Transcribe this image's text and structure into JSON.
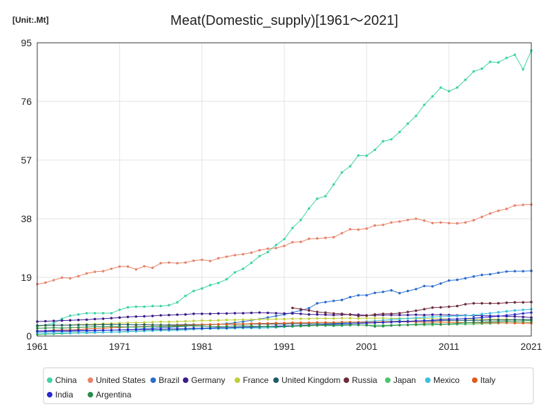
{
  "chart_data": {
    "type": "line",
    "title": "Meat(Domestic_supply)[1961～2021]",
    "unit_label": "[Unit:.Mt]",
    "xlabel": "",
    "ylabel": "",
    "xlim": [
      1961,
      2021
    ],
    "ylim": [
      0,
      95
    ],
    "x_ticks": [
      1961,
      1971,
      1981,
      1991,
      2001,
      2011,
      2021
    ],
    "y_ticks": [
      0,
      19,
      38,
      57,
      76,
      95
    ],
    "grid": true,
    "legend_position": "bottom",
    "series": [
      {
        "name": "China",
        "color": "#3fd3a6",
        "start_year": 1961,
        "values": [
          3.1,
          3.5,
          4.2,
          5.6,
          6.6,
          7.0,
          7.4,
          7.4,
          7.4,
          7.4,
          8.5,
          9.3,
          9.5,
          9.5,
          9.7,
          9.7,
          10.0,
          10.9,
          13.0,
          14.6,
          15.4,
          16.5,
          17.2,
          18.4,
          20.6,
          21.8,
          23.7,
          25.9,
          27.2,
          29.5,
          31.4,
          35.0,
          37.6,
          41.3,
          44.5,
          45.3,
          49.1,
          53.0,
          55.0,
          58.5,
          58.4,
          60.3,
          63.1,
          63.7,
          66.1,
          68.8,
          71.3,
          74.9,
          77.6,
          80.5,
          79.3,
          80.5,
          83.0,
          85.7,
          86.6,
          88.8,
          88.6,
          90.1,
          91.1,
          86.4,
          92.5
        ]
      },
      {
        "name": "United States",
        "color": "#e8846a",
        "start_year": 1961,
        "values": [
          16.8,
          17.3,
          18.1,
          18.9,
          18.7,
          19.4,
          20.3,
          20.8,
          21.0,
          21.8,
          22.5,
          22.5,
          21.6,
          22.6,
          22.1,
          23.6,
          23.8,
          23.6,
          23.8,
          24.4,
          24.7,
          24.3,
          25.2,
          25.7,
          26.2,
          26.5,
          27.0,
          27.8,
          28.3,
          28.5,
          29.2,
          30.4,
          30.5,
          31.5,
          31.6,
          31.8,
          32.0,
          33.3,
          34.6,
          34.5,
          34.8,
          35.8,
          36.0,
          36.8,
          37.1,
          37.6,
          38.0,
          37.4,
          36.6,
          36.8,
          36.6,
          36.5,
          36.8,
          37.5,
          38.6,
          39.7,
          40.6,
          41.2,
          42.3,
          42.5,
          42.6
        ]
      },
      {
        "name": "Brazil",
        "color": "#2a6dcf",
        "start_year": 1961,
        "values": [
          1.4,
          1.4,
          1.5,
          1.5,
          1.5,
          1.6,
          1.6,
          1.7,
          1.8,
          1.9,
          2.0,
          2.1,
          2.2,
          2.4,
          2.5,
          2.7,
          2.8,
          3.0,
          3.2,
          3.5,
          3.6,
          3.7,
          3.8,
          4.0,
          4.3,
          4.7,
          5.1,
          5.5,
          6.0,
          6.5,
          7.0,
          7.6,
          8.3,
          9.0,
          10.6,
          11.0,
          11.4,
          11.7,
          12.6,
          13.2,
          13.2,
          14.0,
          14.3,
          14.8,
          13.9,
          14.6,
          15.2,
          16.2,
          16.1,
          17.0,
          18.0,
          18.2,
          18.7,
          19.3,
          19.8,
          20.0,
          20.5,
          20.9,
          21.0,
          21.0,
          21.1
        ]
      },
      {
        "name": "Germany",
        "color": "#3b1a8c",
        "start_year": 1961,
        "values": [
          4.7,
          4.8,
          4.9,
          5.0,
          5.1,
          5.2,
          5.3,
          5.5,
          5.6,
          5.8,
          6.0,
          6.2,
          6.3,
          6.4,
          6.5,
          6.7,
          6.8,
          6.9,
          7.0,
          7.2,
          7.2,
          7.2,
          7.3,
          7.3,
          7.4,
          7.4,
          7.5,
          7.6,
          7.5,
          7.4,
          7.3,
          7.3,
          7.2,
          7.0,
          7.0,
          6.9,
          6.8,
          6.9,
          7.0,
          6.9,
          6.7,
          6.7,
          6.8,
          6.8,
          6.8,
          6.8,
          6.9,
          6.8,
          6.9,
          6.9,
          6.8,
          6.7,
          6.7,
          6.6,
          6.6,
          6.5,
          6.5,
          6.4,
          6.3,
          6.2,
          6.0
        ]
      },
      {
        "name": "France",
        "color": "#bfcf3a",
        "start_year": 1961,
        "values": [
          3.3,
          3.4,
          3.5,
          3.5,
          3.6,
          3.7,
          3.8,
          3.9,
          4.0,
          4.1,
          4.2,
          4.3,
          4.3,
          4.4,
          4.5,
          4.6,
          4.6,
          4.7,
          4.8,
          4.9,
          5.0,
          5.0,
          5.1,
          5.2,
          5.2,
          5.3,
          5.3,
          5.4,
          5.4,
          5.5,
          5.5,
          5.6,
          5.6,
          5.6,
          5.7,
          5.7,
          5.7,
          5.8,
          5.8,
          5.7,
          5.8,
          5.8,
          5.8,
          5.7,
          5.7,
          5.7,
          5.7,
          5.7,
          5.6,
          5.6,
          5.5,
          5.5,
          5.5,
          5.4,
          5.4,
          5.4,
          5.4,
          5.4,
          5.3,
          5.3,
          5.3
        ]
      },
      {
        "name": "United Kingdom",
        "color": "#1f5a6a",
        "start_year": 1961,
        "values": [
          3.4,
          3.5,
          3.5,
          3.5,
          3.5,
          3.6,
          3.6,
          3.6,
          3.7,
          3.7,
          3.7,
          3.7,
          3.6,
          3.7,
          3.6,
          3.6,
          3.6,
          3.6,
          3.7,
          3.7,
          3.7,
          3.7,
          3.8,
          3.8,
          3.8,
          3.9,
          3.9,
          3.9,
          3.9,
          3.9,
          3.9,
          4.0,
          4.0,
          4.0,
          4.0,
          4.1,
          4.1,
          4.2,
          4.3,
          4.4,
          4.4,
          4.5,
          4.6,
          4.7,
          4.8,
          4.8,
          4.9,
          4.9,
          4.9,
          5.0,
          5.0,
          5.0,
          5.0,
          5.1,
          5.1,
          5.2,
          5.2,
          5.2,
          5.3,
          5.3,
          5.3
        ]
      },
      {
        "name": "Russia",
        "color": "#6e2a3a",
        "start_year": 1992,
        "values": [
          9.1,
          8.7,
          8.3,
          7.8,
          7.6,
          7.3,
          7.2,
          6.9,
          6.5,
          6.6,
          7.0,
          7.2,
          7.2,
          7.4,
          7.8,
          8.2,
          8.7,
          9.2,
          9.3,
          9.5,
          9.7,
          10.3,
          10.6,
          10.6,
          10.6,
          10.6,
          10.8,
          10.9,
          10.9,
          11.0
        ]
      },
      {
        "name": "Japan",
        "color": "#4cc46a",
        "start_year": 1961,
        "values": [
          0.5,
          0.6,
          0.7,
          0.8,
          0.9,
          1.0,
          1.0,
          1.1,
          1.2,
          1.3,
          1.4,
          1.5,
          1.6,
          1.7,
          1.8,
          1.9,
          2.0,
          2.1,
          2.2,
          2.3,
          2.3,
          2.4,
          2.5,
          2.5,
          2.6,
          2.7,
          2.8,
          2.9,
          3.0,
          3.0,
          3.1,
          3.2,
          3.2,
          3.3,
          3.4,
          3.4,
          3.3,
          3.4,
          3.5,
          3.6,
          3.5,
          3.5,
          3.5,
          3.5,
          3.6,
          3.6,
          3.6,
          3.6,
          3.6,
          3.7,
          3.8,
          3.8,
          3.8,
          3.9,
          4.0,
          4.1,
          4.2,
          4.3,
          4.3,
          4.3,
          4.4
        ]
      },
      {
        "name": "Mexico",
        "color": "#3cbfe0",
        "start_year": 1961,
        "values": [
          0.9,
          0.9,
          1.0,
          1.0,
          1.0,
          1.1,
          1.1,
          1.2,
          1.2,
          1.3,
          1.3,
          1.4,
          1.5,
          1.6,
          1.7,
          1.8,
          1.8,
          1.9,
          2.0,
          2.2,
          2.3,
          2.4,
          2.4,
          2.4,
          2.5,
          2.6,
          2.6,
          2.6,
          2.7,
          2.8,
          3.0,
          3.1,
          3.3,
          3.5,
          3.6,
          3.7,
          3.9,
          4.1,
          4.3,
          4.5,
          4.7,
          4.9,
          5.1,
          5.3,
          5.5,
          5.7,
          5.9,
          6.1,
          6.2,
          6.3,
          6.4,
          6.5,
          6.6,
          6.8,
          7.1,
          7.4,
          7.7,
          8.0,
          8.3,
          8.5,
          8.7
        ]
      },
      {
        "name": "Italy",
        "color": "#e05a1a",
        "start_year": 1961,
        "values": [
          1.6,
          1.7,
          1.9,
          2.0,
          2.0,
          2.1,
          2.3,
          2.4,
          2.5,
          2.7,
          2.8,
          2.9,
          3.0,
          3.1,
          3.1,
          3.2,
          3.3,
          3.4,
          3.5,
          3.6,
          3.7,
          3.7,
          3.8,
          3.8,
          3.9,
          3.9,
          4.0,
          4.1,
          4.1,
          4.2,
          4.2,
          4.3,
          4.3,
          4.3,
          4.4,
          4.4,
          4.4,
          4.5,
          4.5,
          4.5,
          4.5,
          4.5,
          4.6,
          4.6,
          4.6,
          4.6,
          4.6,
          4.5,
          4.5,
          4.5,
          4.4,
          4.4,
          4.3,
          4.3,
          4.3,
          4.3,
          4.3,
          4.3,
          4.2,
          4.2,
          4.2
        ]
      },
      {
        "name": "India",
        "color": "#2a2ad0",
        "start_year": 1961,
        "values": [
          1.6,
          1.6,
          1.7,
          1.7,
          1.7,
          1.8,
          1.8,
          1.8,
          1.9,
          1.9,
          2.0,
          2.0,
          2.1,
          2.1,
          2.2,
          2.2,
          2.3,
          2.3,
          2.4,
          2.5,
          2.5,
          2.6,
          2.7,
          2.7,
          2.8,
          2.9,
          2.9,
          3.0,
          3.1,
          3.2,
          3.3,
          3.3,
          3.4,
          3.5,
          3.6,
          3.7,
          3.8,
          3.9,
          4.0,
          4.1,
          4.2,
          4.3,
          4.4,
          4.5,
          4.6,
          4.7,
          4.9,
          5.0,
          5.1,
          5.3,
          5.4,
          5.5,
          5.6,
          5.8,
          6.0,
          6.2,
          6.4,
          6.7,
          7.0,
          7.3,
          7.6
        ]
      },
      {
        "name": "Argentina",
        "color": "#2a8c4a",
        "start_year": 1961,
        "values": [
          2.5,
          2.6,
          2.7,
          2.6,
          2.7,
          2.8,
          2.9,
          3.0,
          3.0,
          3.1,
          3.0,
          2.9,
          2.9,
          3.0,
          3.1,
          3.1,
          3.2,
          3.2,
          3.3,
          3.3,
          3.2,
          3.1,
          3.0,
          3.1,
          3.2,
          3.3,
          3.2,
          3.1,
          3.1,
          3.0,
          3.1,
          3.2,
          3.3,
          3.4,
          3.5,
          3.5,
          3.5,
          3.5,
          3.6,
          3.6,
          3.5,
          3.1,
          3.2,
          3.4,
          3.5,
          3.6,
          3.8,
          3.9,
          4.0,
          3.8,
          3.9,
          4.1,
          4.3,
          4.4,
          4.5,
          4.6,
          4.7,
          4.8,
          4.8,
          4.9,
          5.0
        ]
      }
    ]
  }
}
